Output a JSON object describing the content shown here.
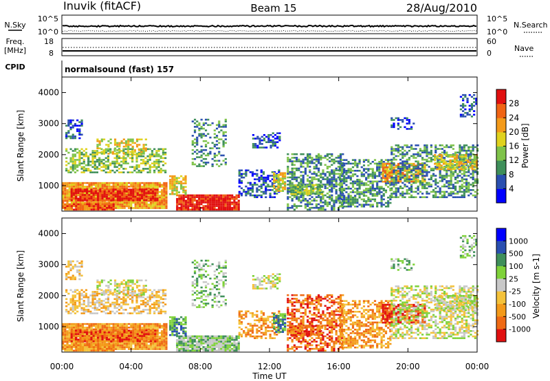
{
  "header": {
    "station": "Inuvik (fitACF)",
    "beam": "Beam 15",
    "date": "28/Aug/2010"
  },
  "noise_panel": {
    "left_label": "N.Sky",
    "left_ticks": [
      "10^5",
      "10^0"
    ],
    "right_label": "N.Search",
    "right_ticks": [
      "10^5",
      "10^0"
    ]
  },
  "freq_panel": {
    "left_label_1": "Freq.",
    "left_label_2": "[MHz]",
    "left_ticks": [
      "18",
      "8"
    ],
    "right_label": "Nave",
    "right_ticks": [
      "60",
      "0"
    ]
  },
  "cpid_panel": {
    "label": "CPID",
    "mode": "normalsound (fast) 157"
  },
  "colors": {
    "power_scale": [
      "#0000ff",
      "#2a4fb0",
      "#3f8f5a",
      "#7fc34a",
      "#e0d21e",
      "#f39a1a",
      "#f06414",
      "#e11010"
    ],
    "velocity_scale": [
      "#0000ff",
      "#2a4fb0",
      "#3f8f5a",
      "#7fd23a",
      "#c8c8c8",
      "#f4c23a",
      "#f39a1a",
      "#ef6a14",
      "#e11010"
    ]
  },
  "chart_data": [
    {
      "type": "heatmap",
      "title": "Power",
      "xlabel": "",
      "ylabel": "Slant Range [km]",
      "xlim": [
        "00:00",
        "24:00"
      ],
      "ylim": [
        180,
        4500
      ],
      "x_ticks": [
        "00:00",
        "04:00",
        "08:00",
        "12:00",
        "16:00",
        "20:00",
        "00:00"
      ],
      "y_ticks": [
        1000,
        2000,
        3000,
        4000
      ],
      "colorbar": {
        "label": "Power [dB]",
        "range": [
          0,
          32
        ],
        "ticks": [
          4,
          8,
          12,
          16,
          20,
          24,
          28
        ]
      }
    },
    {
      "type": "heatmap",
      "title": "Velocity",
      "xlabel": "Time UT",
      "ylabel": "Slant Range [km]",
      "xlim": [
        "00:00",
        "24:00"
      ],
      "ylim": [
        180,
        4500
      ],
      "x_ticks": [
        "00:00",
        "04:00",
        "08:00",
        "12:00",
        "16:00",
        "20:00",
        "00:00"
      ],
      "y_ticks": [
        1000,
        2000,
        3000,
        4000
      ],
      "colorbar": {
        "label": "Velocity [m s-1]",
        "ticks": [
          "1000",
          "500",
          "100",
          "25",
          "-25",
          "-100",
          "-500",
          "-1000"
        ]
      }
    }
  ]
}
